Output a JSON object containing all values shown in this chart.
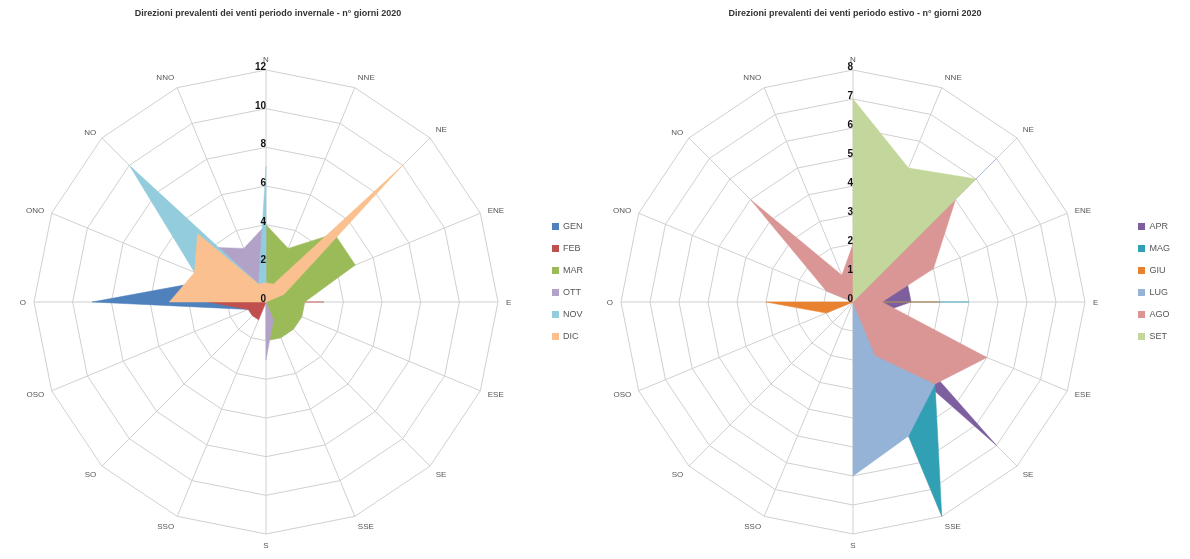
{
  "chart_data": [
    {
      "type": "radar",
      "title": "Direzioni prevalenti dei venti periodo invernale - n° giorni 2020",
      "categories": [
        "N",
        "NNE",
        "NE",
        "ENE",
        "E",
        "ESE",
        "SE",
        "SSE",
        "S",
        "SSO",
        "SO",
        "OSO",
        "O",
        "ONO",
        "NO",
        "NNO"
      ],
      "series": [
        {
          "name": "GEN",
          "color": "#4f81bd",
          "values": [
            0,
            0,
            0,
            0,
            0,
            0,
            0,
            0,
            0,
            0,
            0,
            1,
            9,
            3,
            0,
            0
          ]
        },
        {
          "name": "FEB",
          "color": "#c0504d",
          "values": [
            0,
            0,
            0,
            0,
            3,
            0,
            0,
            0,
            0,
            1,
            1,
            1,
            3,
            0,
            0,
            0
          ]
        },
        {
          "name": "MAR",
          "color": "#9bbb59",
          "values": [
            4,
            3,
            5,
            5,
            2,
            2,
            2,
            2,
            2,
            0,
            0,
            0,
            0,
            0,
            0,
            0
          ]
        },
        {
          "name": "OTT",
          "color": "#b3a2c7",
          "values": [
            4,
            0,
            0,
            0,
            0,
            0,
            0,
            1,
            3,
            0,
            0,
            0,
            0,
            2,
            4,
            3
          ]
        },
        {
          "name": "NOV",
          "color": "#93cddd",
          "values": [
            7,
            0,
            0,
            0,
            0,
            0,
            0,
            0,
            0,
            0,
            0,
            0,
            0,
            4,
            10,
            1
          ]
        },
        {
          "name": "DIC",
          "color": "#fac090",
          "values": [
            1,
            1,
            10,
            1,
            0,
            0,
            0,
            0,
            0,
            0,
            0,
            0,
            5,
            4,
            5,
            1
          ]
        }
      ],
      "ylim": [
        0,
        12
      ],
      "yticks": [
        0,
        2,
        4,
        6,
        8,
        10,
        12
      ],
      "grid": true,
      "legend": "right"
    },
    {
      "type": "radar",
      "title": "Direzioni prevalenti dei venti periodo estivo - n° giorni 2020",
      "categories": [
        "N",
        "NNE",
        "NE",
        "ENE",
        "E",
        "ESE",
        "SE",
        "SSE",
        "S",
        "SSO",
        "SO",
        "OSO",
        "O",
        "ONO",
        "NO",
        "NNO"
      ],
      "series": [
        {
          "name": "APR",
          "color": "#7d5fa0",
          "values": [
            0,
            0,
            0,
            2,
            2,
            1,
            7,
            1,
            0,
            0,
            0,
            0,
            0,
            0,
            0,
            0
          ]
        },
        {
          "name": "MAG",
          "color": "#31a0b5",
          "values": [
            0,
            0,
            0,
            0,
            4,
            0,
            4,
            8,
            0,
            0,
            0,
            0,
            0,
            0,
            0,
            0
          ]
        },
        {
          "name": "GIU",
          "color": "#e8822e",
          "values": [
            0,
            0,
            0,
            0,
            3,
            0,
            0,
            0,
            0,
            0,
            0,
            1,
            3,
            0,
            0,
            0
          ]
        },
        {
          "name": "LUG",
          "color": "#95b3d7",
          "values": [
            0,
            0,
            7,
            0,
            0,
            0,
            4,
            5,
            6,
            0,
            0,
            0,
            0,
            0,
            0,
            0
          ]
        },
        {
          "name": "AGO",
          "color": "#d99694",
          "values": [
            2,
            0,
            5,
            3,
            1,
            5,
            4,
            2,
            0,
            0,
            0,
            0,
            0,
            1,
            5,
            1
          ]
        },
        {
          "name": "SET",
          "color": "#c3d69b",
          "values": [
            7,
            5,
            6,
            0,
            0,
            0,
            0,
            0,
            0,
            0,
            0,
            0,
            0,
            0,
            0,
            0
          ]
        }
      ],
      "ylim": [
        0,
        8
      ],
      "yticks": [
        0,
        1,
        2,
        3,
        4,
        5,
        6,
        7,
        8
      ],
      "grid": true,
      "legend": "right"
    }
  ]
}
